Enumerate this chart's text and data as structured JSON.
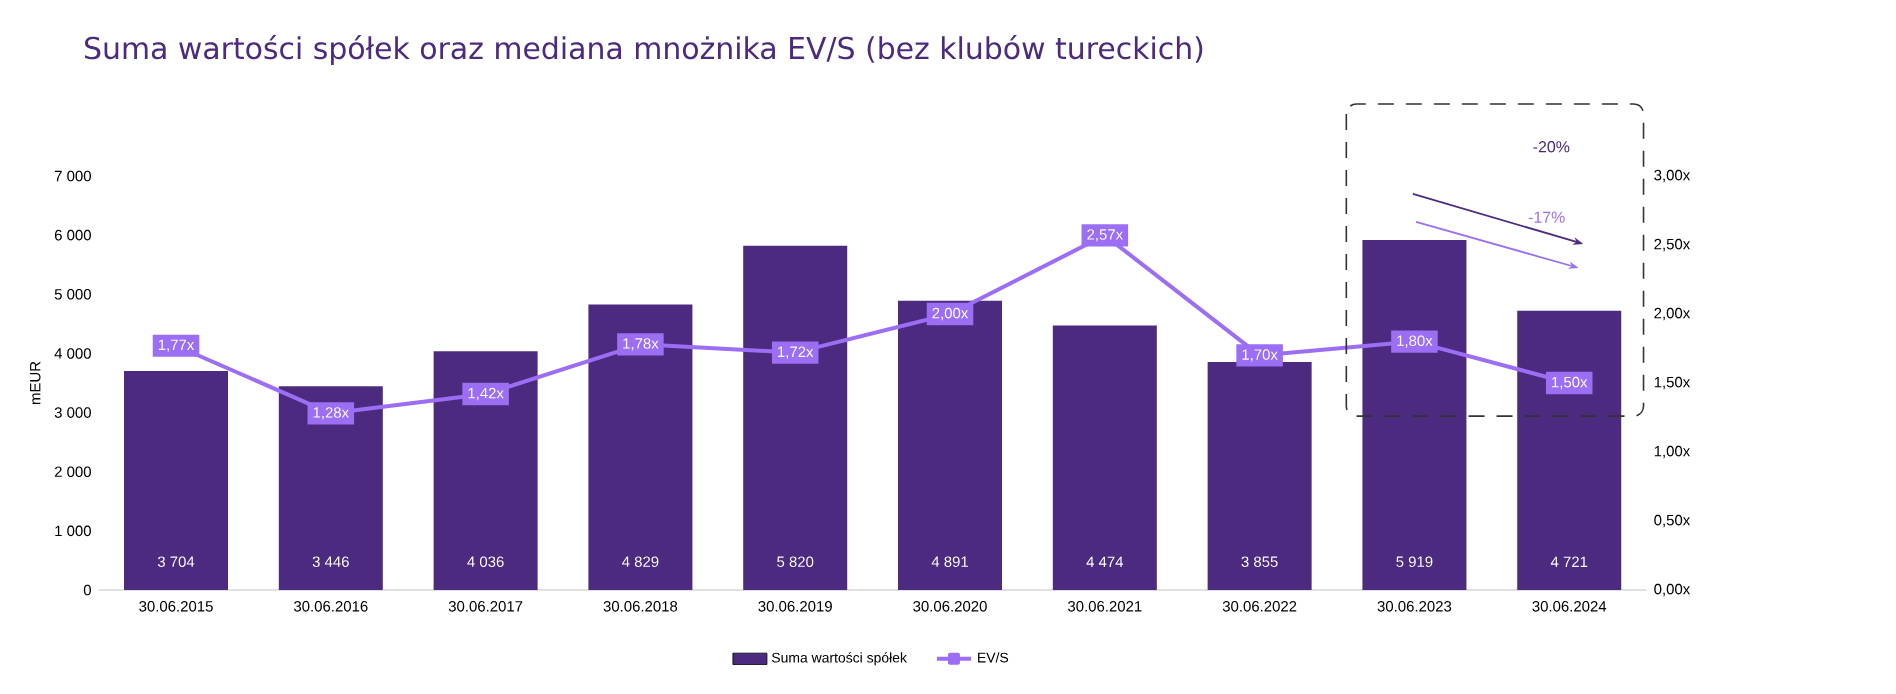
{
  "chart_data": {
    "type": "bar",
    "title": "Suma wartości spółek oraz mediana mnożnika EV/S (bez klubów tureckich)",
    "ylabel": "mEUR",
    "categories": [
      "30.06.2015",
      "30.06.2016",
      "30.06.2017",
      "30.06.2018",
      "30.06.2019",
      "30.06.2020",
      "30.06.2021",
      "30.06.2022",
      "30.06.2023",
      "30.06.2024"
    ],
    "series": [
      {
        "name": "Suma wartości spółek",
        "type": "bar",
        "color": "#4b2a7f",
        "values": [
          3704,
          3446,
          4036,
          4829,
          5820,
          4891,
          4474,
          3855,
          5919,
          4721
        ],
        "value_labels": [
          "3 704",
          "3 446",
          "4 036",
          "4 829",
          "5 820",
          "4 891",
          "4 474",
          "3 855",
          "5 919",
          "4 721"
        ]
      },
      {
        "name": "EV/S",
        "type": "line",
        "axis": "y2",
        "color": "#9b6ef3",
        "marker": "square",
        "values": [
          1.77,
          1.28,
          1.42,
          1.78,
          1.72,
          2.0,
          2.57,
          1.7,
          1.8,
          1.5
        ],
        "value_labels": [
          "1,77x",
          "1,28x",
          "1,42x",
          "1,78x",
          "1,72x",
          "2,00x",
          "2,57x",
          "1,70x",
          "1,80x",
          "1,50x"
        ]
      }
    ],
    "ylim": [
      0,
      7000
    ],
    "yticks": [
      {
        "value": 0,
        "label": "0"
      },
      {
        "value": 1000,
        "label": "1 000"
      },
      {
        "value": 2000,
        "label": "2 000"
      },
      {
        "value": 3000,
        "label": "3 000"
      },
      {
        "value": 4000,
        "label": "4 000"
      },
      {
        "value": 5000,
        "label": "5 000"
      },
      {
        "value": 6000,
        "label": "6 000"
      },
      {
        "value": 7000,
        "label": "7 000"
      }
    ],
    "y2lim": [
      0,
      3
    ],
    "y2ticks": [
      {
        "value": 0,
        "label": "0,00x"
      },
      {
        "value": 0.5,
        "label": "0,50x"
      },
      {
        "value": 1,
        "label": "1,00x"
      },
      {
        "value": 1.5,
        "label": "1,50x"
      },
      {
        "value": 2,
        "label": "2,00x"
      },
      {
        "value": 2.5,
        "label": "2,50x"
      },
      {
        "value": 3,
        "label": "3,00x"
      }
    ],
    "annotations": [
      "-20%",
      "-17%"
    ],
    "grid": false,
    "legend": "bottom"
  }
}
